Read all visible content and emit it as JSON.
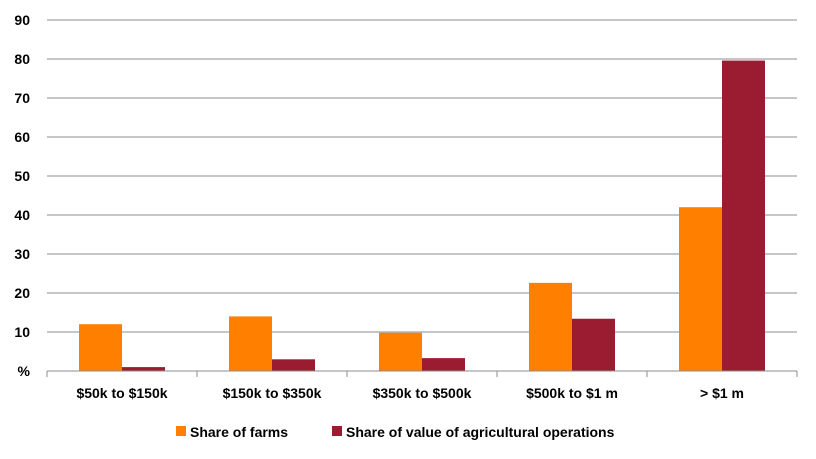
{
  "chart_data": {
    "type": "bar",
    "title": "",
    "xlabel": "",
    "ylabel": "",
    "y_bottom_tick_label": "%",
    "categories": [
      "$50k to $150k",
      "$150k to $350k",
      "$350k to $500k",
      "$500k to $1 m",
      "> $1 m"
    ],
    "series": [
      {
        "name": "Share of farms",
        "color": "#ff8000",
        "values": [
          12,
          14,
          9.8,
          22.6,
          42
        ]
      },
      {
        "name": "Share of value of agricultural operations",
        "color": "#9b1b30",
        "values": [
          1,
          3,
          3.3,
          13.4,
          79.6
        ]
      }
    ],
    "ylim": [
      0,
      90
    ],
    "yticks": [
      10,
      20,
      30,
      40,
      50,
      60,
      70,
      80,
      90
    ],
    "grid": true,
    "legend": "bottom"
  }
}
